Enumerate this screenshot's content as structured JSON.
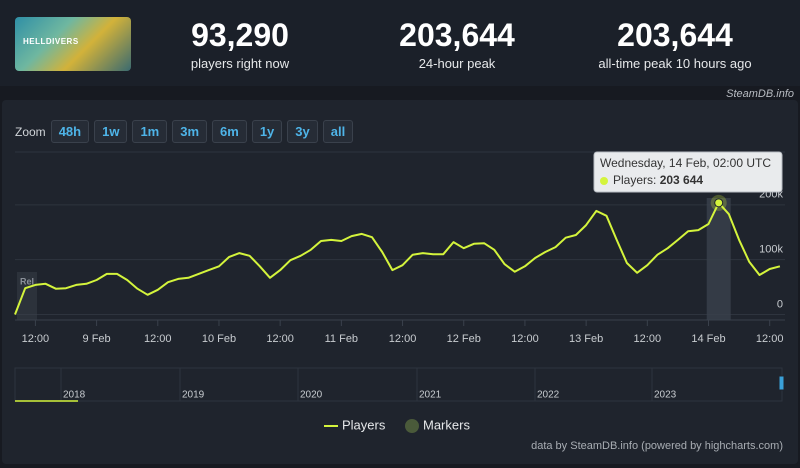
{
  "header": {
    "logo": "HELLDIVERS",
    "stats": [
      {
        "value": "93,290",
        "label": "players right now"
      },
      {
        "value": "203,644",
        "label": "24-hour peak"
      },
      {
        "value": "203,644",
        "label": "all-time peak 10 hours ago"
      }
    ],
    "credit": "SteamDB.info"
  },
  "zoom": {
    "label": "Zoom",
    "buttons": [
      "48h",
      "1w",
      "1m",
      "3m",
      "6m",
      "1y",
      "3y",
      "all"
    ]
  },
  "chart_data": {
    "type": "line",
    "x": [
      "8 Feb 08:00",
      "8 Feb 10:00",
      "8 Feb 12:00",
      "8 Feb 14:00",
      "8 Feb 16:00",
      "8 Feb 18:00",
      "8 Feb 20:00",
      "8 Feb 22:00",
      "9 Feb 00:00",
      "9 Feb 02:00",
      "9 Feb 04:00",
      "9 Feb 06:00",
      "9 Feb 08:00",
      "9 Feb 10:00",
      "9 Feb 12:00",
      "9 Feb 14:00",
      "9 Feb 16:00",
      "9 Feb 18:00",
      "9 Feb 20:00",
      "9 Feb 22:00",
      "10 Feb 00:00",
      "10 Feb 02:00",
      "10 Feb 04:00",
      "10 Feb 06:00",
      "10 Feb 08:00",
      "10 Feb 10:00",
      "10 Feb 12:00",
      "10 Feb 14:00",
      "10 Feb 16:00",
      "10 Feb 18:00",
      "10 Feb 20:00",
      "10 Feb 22:00",
      "11 Feb 00:00",
      "11 Feb 02:00",
      "11 Feb 04:00",
      "11 Feb 06:00",
      "11 Feb 08:00",
      "11 Feb 10:00",
      "11 Feb 12:00",
      "11 Feb 14:00",
      "11 Feb 16:00",
      "11 Feb 18:00",
      "11 Feb 20:00",
      "11 Feb 22:00",
      "12 Feb 00:00",
      "12 Feb 02:00",
      "12 Feb 04:00",
      "12 Feb 06:00",
      "12 Feb 08:00",
      "12 Feb 10:00",
      "12 Feb 12:00",
      "12 Feb 14:00",
      "12 Feb 16:00",
      "12 Feb 18:00",
      "12 Feb 20:00",
      "12 Feb 22:00",
      "13 Feb 00:00",
      "13 Feb 02:00",
      "13 Feb 04:00",
      "13 Feb 06:00",
      "13 Feb 08:00",
      "13 Feb 10:00",
      "13 Feb 12:00",
      "13 Feb 14:00",
      "13 Feb 16:00",
      "13 Feb 18:00",
      "13 Feb 20:00",
      "13 Feb 22:00",
      "14 Feb 00:00",
      "14 Feb 02:00",
      "14 Feb 04:00",
      "14 Feb 06:00",
      "14 Feb 08:00",
      "14 Feb 10:00",
      "14 Feb 12:00",
      "14 Feb 14:00"
    ],
    "series": [
      {
        "name": "Players",
        "color": "#d4f43c",
        "values": [
          0,
          48000,
          54000,
          56000,
          47000,
          48000,
          54000,
          56000,
          63000,
          74000,
          74000,
          63000,
          47000,
          36000,
          45000,
          59000,
          65000,
          67000,
          74000,
          81000,
          88000,
          105000,
          112000,
          107000,
          88000,
          67000,
          81000,
          99000,
          107000,
          118000,
          134000,
          136000,
          134000,
          143000,
          147000,
          141000,
          114000,
          81000,
          90000,
          109000,
          112000,
          110000,
          110000,
          132000,
          121000,
          129000,
          130000,
          118000,
          92000,
          78000,
          88000,
          103000,
          114000,
          123000,
          140000,
          145000,
          163000,
          189000,
          180000,
          136000,
          94000,
          76000,
          90000,
          109000,
          121000,
          136000,
          152000,
          154000,
          165000,
          203644,
          183000,
          136000,
          96000,
          72000,
          83000,
          88000
        ]
      },
      {
        "name": "Markers",
        "color": "#4a5a3a"
      }
    ],
    "xlim": [
      "8 Feb 08:00",
      "14 Feb 15:00"
    ],
    "xticks": [
      {
        "value": "8 Feb 12:00",
        "label": "12:00"
      },
      {
        "value": "9 Feb 00:00",
        "label": "9 Feb"
      },
      {
        "value": "9 Feb 12:00",
        "label": "12:00"
      },
      {
        "value": "10 Feb 00:00",
        "label": "10 Feb"
      },
      {
        "value": "10 Feb 12:00",
        "label": "12:00"
      },
      {
        "value": "11 Feb 00:00",
        "label": "11 Feb"
      },
      {
        "value": "11 Feb 12:00",
        "label": "12:00"
      },
      {
        "value": "12 Feb 00:00",
        "label": "12 Feb"
      },
      {
        "value": "12 Feb 12:00",
        "label": "12:00"
      },
      {
        "value": "13 Feb 00:00",
        "label": "13 Feb"
      },
      {
        "value": "13 Feb 12:00",
        "label": "12:00"
      },
      {
        "value": "14 Feb 00:00",
        "label": "14 Feb"
      },
      {
        "value": "14 Feb 12:00",
        "label": "12:00"
      }
    ],
    "ylim": [
      -10000,
      300000
    ],
    "yticks": [
      0,
      {
        "value": 100000,
        "label": "100k"
      },
      {
        "value": 200000,
        "label": "200k"
      }
    ],
    "grid": true,
    "release_label": "Rel",
    "tooltip": {
      "x": "14 Feb 02:00",
      "title": "Wednesday, 14 Feb, 02:00 UTC",
      "label": "Players:",
      "value": 203644,
      "value_label": "203 644"
    },
    "navigator": [
      "2018",
      "2019",
      "2020",
      "2021",
      "2022",
      "2023"
    ],
    "footer": "data by SteamDB.info (powered by highcharts.com)"
  }
}
